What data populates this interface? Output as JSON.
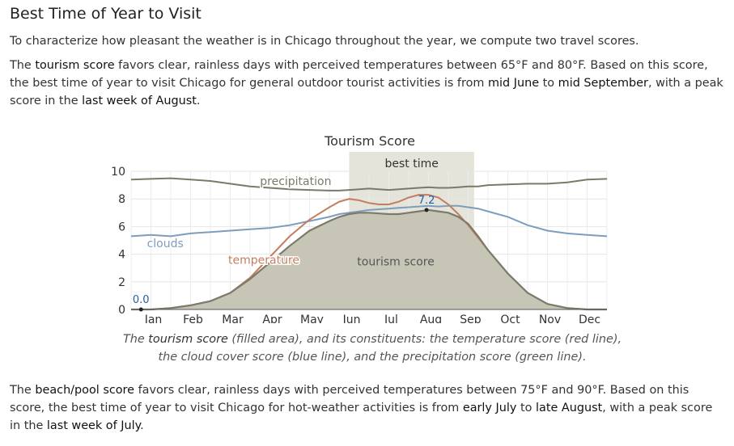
{
  "page": {
    "title": "Best Time of Year to Visit",
    "intro": "To characterize how pleasant the weather is in Chicago throughout the year, we compute two travel scores."
  },
  "tourism_paragraph": {
    "p1": "The ",
    "score_name": "tourism score",
    "p2": " favors clear, rainless days with perceived temperatures between 65°F and 80°F. Based on this score, the best time of year to visit Chicago for general outdoor tourist activities is from ",
    "start": "mid June",
    "p3": " to ",
    "end": "mid September",
    "p4": ", with a peak score in the ",
    "peak": "last week of August",
    "p5": "."
  },
  "caption": {
    "p1": "The ",
    "score_name": "tourism score",
    "p2": " (filled area), and its constituents: the temperature score (red line), the cloud cover score (blue line), and the precipitation score (green line)."
  },
  "beach_paragraph": {
    "p1": "The ",
    "score_name": "beach/pool score",
    "p2": " favors clear, rainless days with perceived temperatures between 75°F and 90°F. Based on this score, the best time of year to visit Chicago for hot-weather activities is from ",
    "start": "early July",
    "p3": " to ",
    "end": "late August",
    "p4": ", with a peak score in the ",
    "peak": "last week of July",
    "p5": "."
  },
  "chart_data": {
    "type": "area",
    "title": "Tourism Score",
    "ylim": [
      0,
      10
    ],
    "y_ticks": [
      0,
      2,
      4,
      6,
      8,
      10
    ],
    "x_range": [
      0,
      12
    ],
    "month_labels": [
      "Jan",
      "Feb",
      "Mar",
      "Apr",
      "May",
      "Jun",
      "Jul",
      "Aug",
      "Sep",
      "Oct",
      "Nov",
      "Dec"
    ],
    "grid": true,
    "best_time": {
      "label": "best time",
      "start": 5.5,
      "end": 8.65
    },
    "x": [
      0,
      0.5,
      1,
      1.5,
      2,
      2.5,
      3,
      3.5,
      4,
      4.5,
      5,
      5.25,
      5.5,
      5.75,
      6,
      6.25,
      6.5,
      6.75,
      7,
      7.25,
      7.5,
      7.75,
      8,
      8.25,
      8.5,
      8.75,
      9,
      9.5,
      10,
      10.5,
      11,
      11.5,
      12
    ],
    "series": [
      {
        "name": "tourism score",
        "color": "#7b7b6b",
        "fill": "#c7c6b6",
        "values": [
          0.0,
          0.0,
          0.1,
          0.3,
          0.6,
          1.2,
          2.2,
          3.4,
          4.6,
          5.7,
          6.4,
          6.7,
          6.9,
          7.0,
          7.0,
          6.95,
          6.9,
          6.9,
          7.0,
          7.1,
          7.2,
          7.1,
          7.0,
          6.7,
          6.2,
          5.3,
          4.3,
          2.6,
          1.2,
          0.4,
          0.1,
          0.0,
          0.0
        ]
      },
      {
        "name": "temperature",
        "color": "#c47e5f",
        "values": [
          0.0,
          0.0,
          0.1,
          0.3,
          0.6,
          1.2,
          2.3,
          3.8,
          5.3,
          6.5,
          7.4,
          7.8,
          8.0,
          7.9,
          7.7,
          7.6,
          7.6,
          7.8,
          8.1,
          8.3,
          8.3,
          8.1,
          7.6,
          6.9,
          6.1,
          5.2,
          4.3,
          2.6,
          1.2,
          0.4,
          0.1,
          0.0,
          0.0
        ]
      },
      {
        "name": "clouds",
        "color": "#7d9dbd",
        "values": [
          5.3,
          5.4,
          5.3,
          5.5,
          5.6,
          5.7,
          5.8,
          5.9,
          6.1,
          6.4,
          6.7,
          6.9,
          7.0,
          7.1,
          7.2,
          7.25,
          7.3,
          7.35,
          7.4,
          7.45,
          7.5,
          7.45,
          7.5,
          7.5,
          7.4,
          7.3,
          7.1,
          6.7,
          6.1,
          5.7,
          5.5,
          5.4,
          5.3
        ]
      },
      {
        "name": "precipitation",
        "color": "#7a7a68",
        "values": [
          9.4,
          9.45,
          9.5,
          9.4,
          9.3,
          9.1,
          8.9,
          8.8,
          8.7,
          8.65,
          8.6,
          8.6,
          8.65,
          8.7,
          8.75,
          8.7,
          8.65,
          8.7,
          8.75,
          8.8,
          8.85,
          8.8,
          8.8,
          8.85,
          8.9,
          8.9,
          9.0,
          9.05,
          9.1,
          9.1,
          9.2,
          9.4,
          9.45
        ]
      }
    ],
    "series_labels": [
      {
        "series": "precipitation",
        "text": "precipitation",
        "x": 3.25,
        "y": 9.0
      },
      {
        "series": "clouds",
        "text": "clouds",
        "x": 0.4,
        "y": 4.5
      },
      {
        "series": "temperature",
        "text": "temperature",
        "x": 2.45,
        "y": 3.3
      },
      {
        "series": "tourism score",
        "text": "tourism score",
        "x": 5.7,
        "y": 3.2
      }
    ],
    "annotations": [
      {
        "text": "0.0",
        "x": 0.25,
        "y": 0.0
      },
      {
        "text": "7.2",
        "x": 7.45,
        "y": 7.2
      }
    ]
  }
}
